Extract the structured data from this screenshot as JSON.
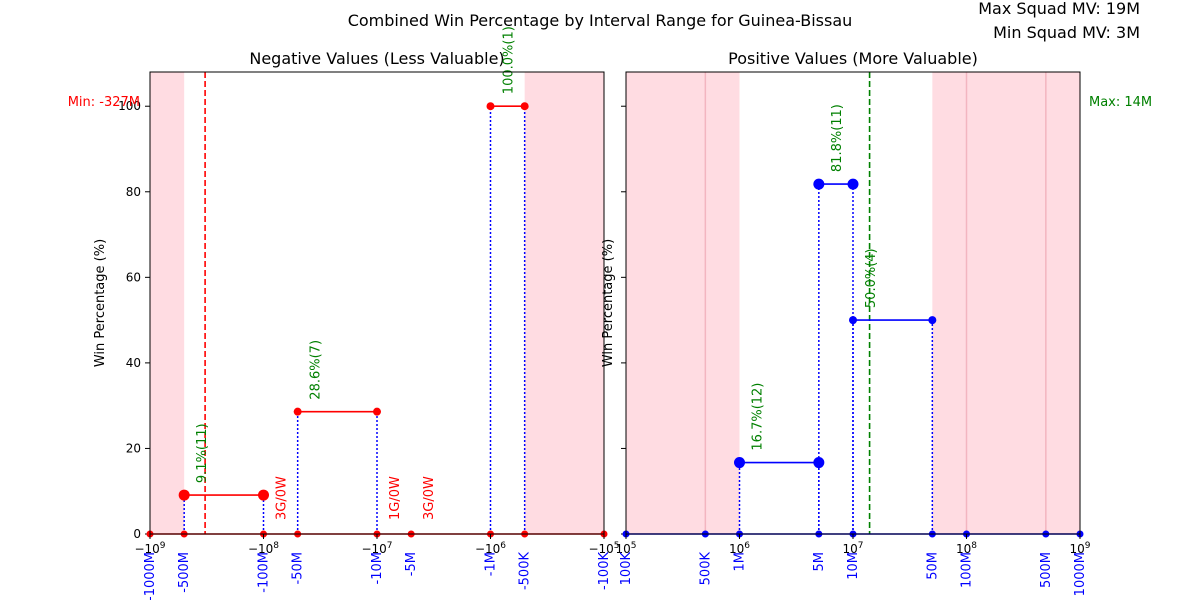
{
  "figure": {
    "title": "Combined Win Percentage by Interval Range for Guinea-Bissau",
    "corner_top": "Max Squad MV: 19M",
    "corner_bottom": "Min Squad MV: 3M"
  },
  "chart_data": [
    {
      "type": "line",
      "title": "Negative Values (Less Valuable)",
      "xscale": "symlog (negative)",
      "ylabel": "Win Percentage (%)",
      "ylim": [
        0,
        108
      ],
      "yticks": [
        "0",
        "20",
        "40",
        "60",
        "80",
        "100"
      ],
      "main_ticks": [
        {
          "v": -1000000000,
          "label": "−10^9"
        },
        {
          "v": -100000000,
          "label": "−10^8"
        },
        {
          "v": -10000000,
          "label": "−10^7"
        },
        {
          "v": -1000000,
          "label": "−10^6"
        },
        {
          "v": -100000,
          "label": "−10^5"
        }
      ],
      "boundaries": [
        {
          "v": -1000000000,
          "label": "-1000M"
        },
        {
          "v": -500000000,
          "label": "-500M"
        },
        {
          "v": -100000000,
          "label": "-100M"
        },
        {
          "v": -50000000,
          "label": "-50M"
        },
        {
          "v": -10000000,
          "label": "-10M"
        },
        {
          "v": -5000000,
          "label": "-5M"
        },
        {
          "v": -1000000,
          "label": "-1M"
        },
        {
          "v": -500000,
          "label": "-500K"
        },
        {
          "v": -100000,
          "label": "-100K"
        }
      ],
      "shaded": [
        [
          -1000000000,
          -500000000
        ],
        [
          -500000,
          -100000
        ]
      ],
      "ref_line": {
        "v": -327000000,
        "label": "Min: -327M",
        "color": "#ff0000"
      },
      "color": "#ff0000",
      "segments": [
        {
          "x0": -500000000,
          "x1": -100000000,
          "y": 9.1,
          "label": "9.1%(11)",
          "label_color": "#008000",
          "big": true
        },
        {
          "x0": -100000000,
          "x1": -50000000,
          "y": 0,
          "label": "3G/0W",
          "label_color": "#ff0000"
        },
        {
          "x0": -50000000,
          "x1": -10000000,
          "y": 28.6,
          "label": "28.6%(7)",
          "label_color": "#008000"
        },
        {
          "x0": -10000000,
          "x1": -5000000,
          "y": 0,
          "label": "1G/0W",
          "label_color": "#ff0000"
        },
        {
          "x0": -5000000,
          "x1": -1000000,
          "y": 0,
          "label": "3G/0W",
          "label_color": "#ff0000"
        },
        {
          "x0": -1000000,
          "x1": -500000,
          "y": 100,
          "label": "100.0%(1)",
          "label_color": "#008000"
        }
      ]
    },
    {
      "type": "line",
      "title": "Positive Values (More Valuable)",
      "xscale": "log",
      "ylabel": "Win Percentage (%)",
      "ylim": [
        0,
        108
      ],
      "main_ticks": [
        {
          "v": 100000,
          "label": "10^5"
        },
        {
          "v": 1000000,
          "label": "10^6"
        },
        {
          "v": 10000000,
          "label": "10^7"
        },
        {
          "v": 100000000,
          "label": "10^8"
        },
        {
          "v": 1000000000,
          "label": "10^9"
        }
      ],
      "boundaries": [
        {
          "v": 100000,
          "label": "100K"
        },
        {
          "v": 500000,
          "label": "500K"
        },
        {
          "v": 1000000,
          "label": "1M"
        },
        {
          "v": 5000000,
          "label": "5M"
        },
        {
          "v": 10000000,
          "label": "10M"
        },
        {
          "v": 50000000,
          "label": "50M"
        },
        {
          "v": 100000000,
          "label": "100M"
        },
        {
          "v": 500000000,
          "label": "500M"
        },
        {
          "v": 1000000000,
          "label": "1000M"
        }
      ],
      "shaded": [
        [
          100000,
          1000000
        ],
        [
          50000000,
          1000000000
        ]
      ],
      "ref_line": {
        "v": 14000000,
        "label": "Max: 14M",
        "color": "#008000"
      },
      "color": "#0000ff",
      "segments": [
        {
          "x0": 1000000,
          "x1": 5000000,
          "y": 16.7,
          "label": "16.7%(12)",
          "label_color": "#008000",
          "big": true
        },
        {
          "x0": 5000000,
          "x1": 10000000,
          "y": 81.8,
          "label": "81.8%(11)",
          "label_color": "#008000",
          "big": true
        },
        {
          "x0": 10000000,
          "x1": 50000000,
          "y": 50.0,
          "label": "50.0%(4)",
          "label_color": "#008000"
        }
      ]
    }
  ]
}
